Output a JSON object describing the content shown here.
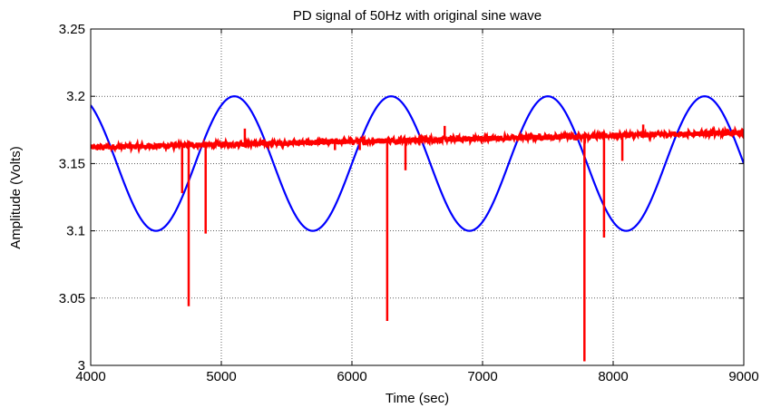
{
  "chart_data": {
    "type": "line",
    "title": "PD signal of 50Hz with original sine wave",
    "xlabel": "Time (sec)",
    "ylabel": "Amplitude (Volts)",
    "xlim": [
      4000,
      9000
    ],
    "ylim": [
      3,
      3.25
    ],
    "x_ticks": [
      4000,
      5000,
      6000,
      7000,
      8000,
      9000
    ],
    "x_tick_labels": [
      "4000",
      "5000",
      "6000",
      "7000",
      "8000",
      "9000"
    ],
    "y_ticks": [
      3,
      3.05,
      3.1,
      3.15,
      3.2,
      3.25
    ],
    "y_tick_labels": [
      "3",
      "3.05",
      "3.1",
      "3.15",
      "3.2",
      "3.25"
    ],
    "grid": true,
    "legend": "none",
    "colors": {
      "sine": "#0000ff",
      "pd": "#ff0000",
      "grid": "#000000",
      "axes": "#000000"
    },
    "series": [
      {
        "id": "sine",
        "color": "#0000ff",
        "kind": "sine",
        "center": 3.15,
        "amplitude": 0.05,
        "period": 1200,
        "peaks_x": [
          5100,
          6300,
          7500,
          8700
        ],
        "troughs_x": [
          4500,
          5700,
          6900,
          8100
        ]
      },
      {
        "id": "pd",
        "color": "#ff0000",
        "kind": "noisy-baseline-with-spikes",
        "baseline_start": [
          4000,
          3.162
        ],
        "baseline_end": [
          9000,
          3.173
        ],
        "spikes": [
          {
            "x": 4700,
            "y": 3.128
          },
          {
            "x": 4750,
            "y": 3.044
          },
          {
            "x": 4880,
            "y": 3.098
          },
          {
            "x": 5180,
            "y": 3.176
          },
          {
            "x": 5870,
            "y": 3.16
          },
          {
            "x": 6060,
            "y": 3.16
          },
          {
            "x": 6270,
            "y": 3.033
          },
          {
            "x": 6410,
            "y": 3.145
          },
          {
            "x": 6560,
            "y": 3.171
          },
          {
            "x": 6710,
            "y": 3.178
          },
          {
            "x": 7780,
            "y": 3.003
          },
          {
            "x": 7930,
            "y": 3.095
          },
          {
            "x": 8070,
            "y": 3.152
          },
          {
            "x": 8230,
            "y": 3.179
          }
        ]
      }
    ]
  }
}
